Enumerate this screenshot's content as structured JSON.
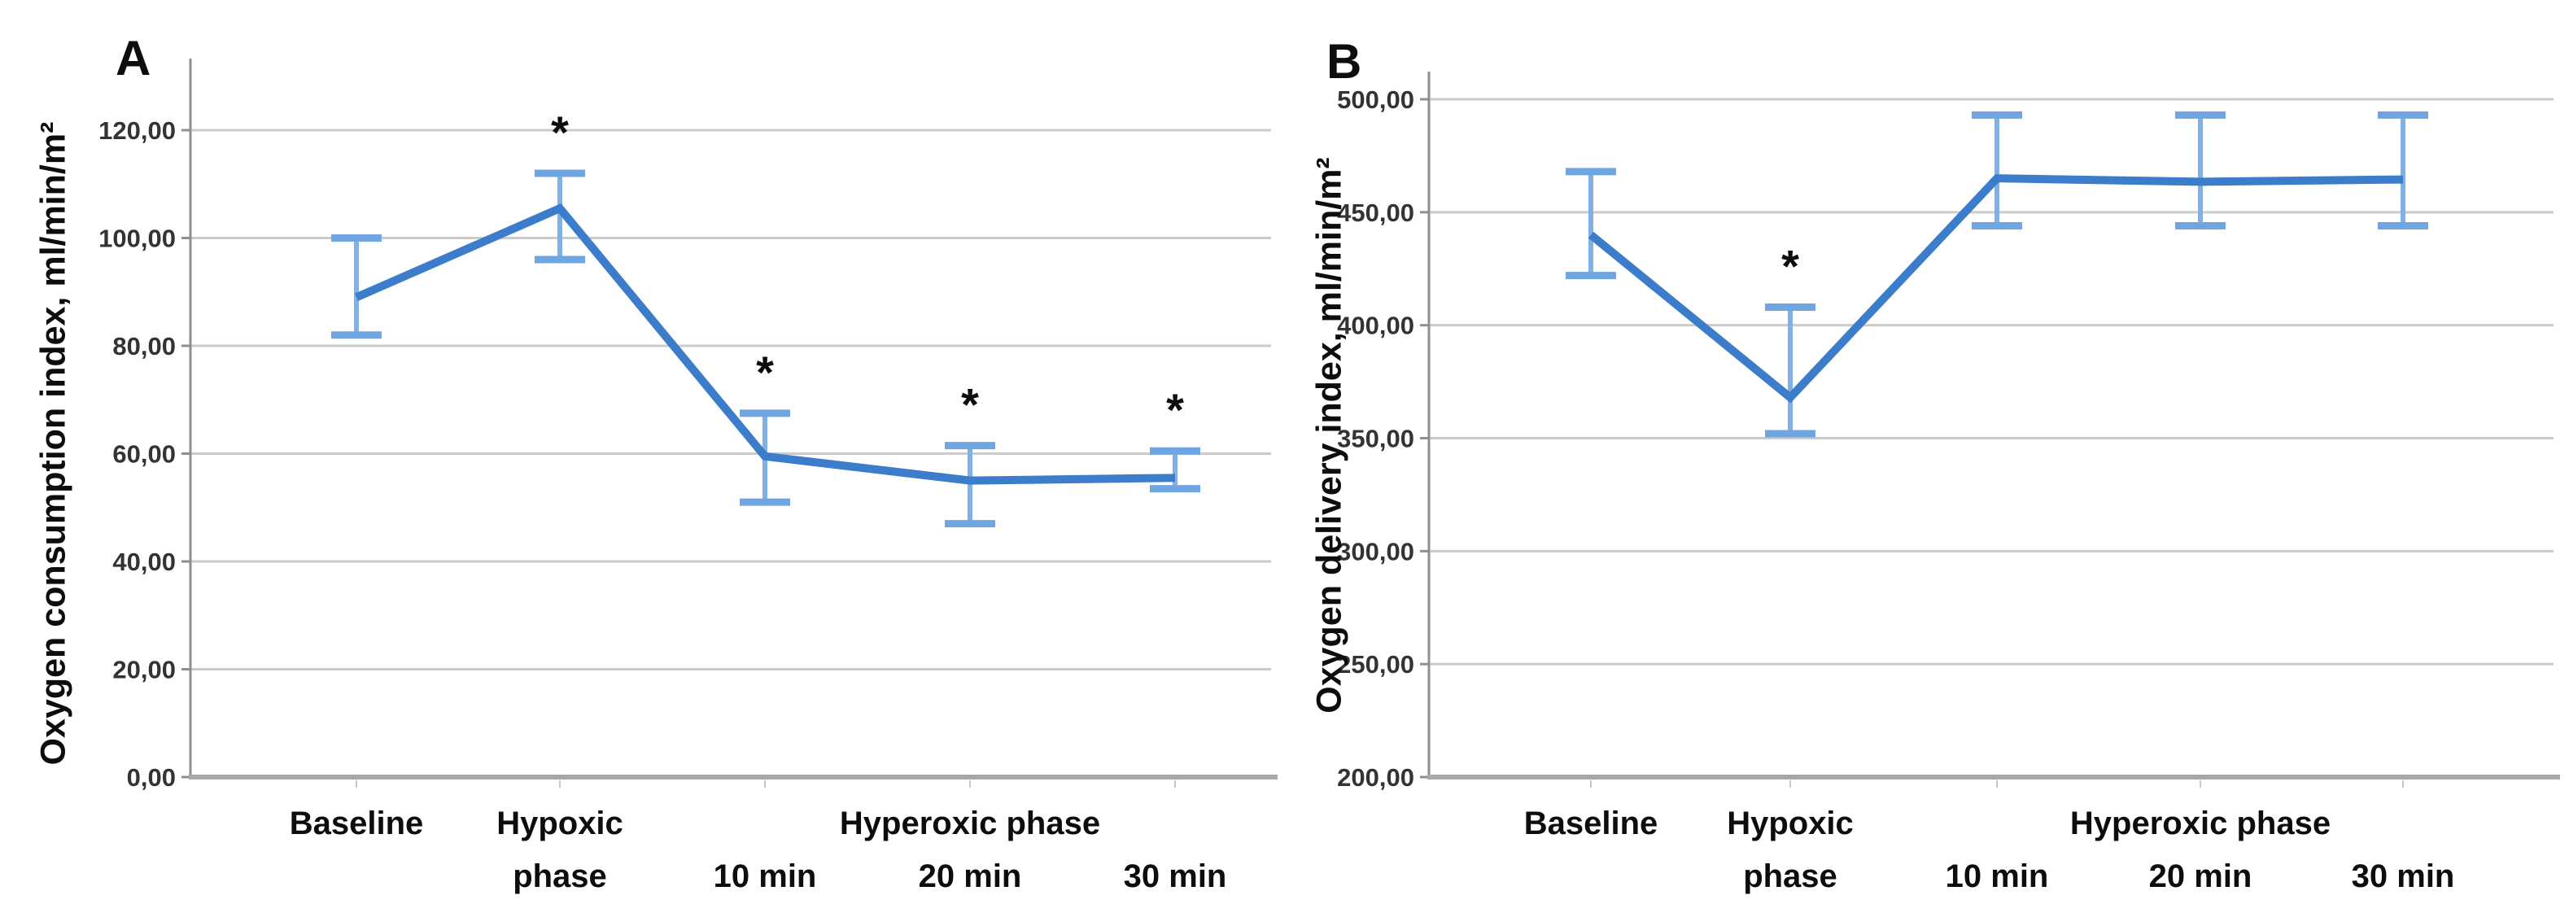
{
  "colors": {
    "background": "#FFFFFF",
    "series_line": "#3B7DCB",
    "error_bar_stem": "#7FB0E6",
    "error_bar_cap": "#6FA6E2",
    "gridline": "#CBCBCB",
    "y_axis_line": "#8F8F8F",
    "x_axis_line": "#A8A8A8",
    "tick_label": "#333333",
    "category_label": "#0D0D0D",
    "asterisk": "#0D0D0D"
  },
  "chart_data": [
    {
      "type": "line",
      "panel_letter": "A",
      "y_axis_title": "Oxygen consumption index, ml/min/m²",
      "xlabel": "",
      "ylabel": "Oxygen consumption index, ml/min/m²",
      "ylim": [
        0,
        120
      ],
      "y_tick_labels": [
        "0,00",
        "20,00",
        "40,00",
        "60,00",
        "80,00",
        "100,00",
        "120,00"
      ],
      "categories": [
        "Baseline",
        "Hypoxic phase",
        "10 min",
        "20 min",
        "30 min"
      ],
      "group_label": "Hyperoxic phase",
      "group_categories": [
        "10 min",
        "20 min",
        "30 min"
      ],
      "grid": true,
      "legend": false,
      "sig_symbol": "*",
      "significant": [
        false,
        true,
        true,
        true,
        true
      ],
      "series": [
        {
          "name": "Oxygen consumption index mean",
          "means": [
            89,
            105.5,
            59.5,
            55,
            55.5
          ],
          "ci_upper": [
            100,
            112,
            67.5,
            61.5,
            60.5
          ],
          "ci_lower": [
            82,
            96,
            51,
            47,
            53.5
          ]
        }
      ]
    },
    {
      "type": "line",
      "panel_letter": "B",
      "y_axis_title": "Oxygen delivery index, ml/min/m²",
      "xlabel": "",
      "ylabel": "Oxygen delivery index, ml/min/m²",
      "ylim": [
        200,
        500
      ],
      "y_tick_labels": [
        "200,00",
        "250,00",
        "300,00",
        "350,00",
        "400,00",
        "450,00",
        "500,00"
      ],
      "categories": [
        "Baseline",
        "Hypoxic phase",
        "10 min",
        "20 min",
        "30 min"
      ],
      "group_label": "Hyperoxic phase",
      "group_categories": [
        "10 min",
        "20 min",
        "30 min"
      ],
      "grid": true,
      "legend": false,
      "sig_symbol": "*",
      "significant": [
        false,
        true,
        false,
        false,
        false
      ],
      "series": [
        {
          "name": "Oxygen delivery index mean",
          "means": [
            440,
            368,
            465,
            463.5,
            464.5
          ],
          "ci_upper": [
            468,
            408,
            493,
            493,
            493
          ],
          "ci_lower": [
            422,
            352,
            444,
            444,
            444
          ]
        }
      ]
    }
  ]
}
